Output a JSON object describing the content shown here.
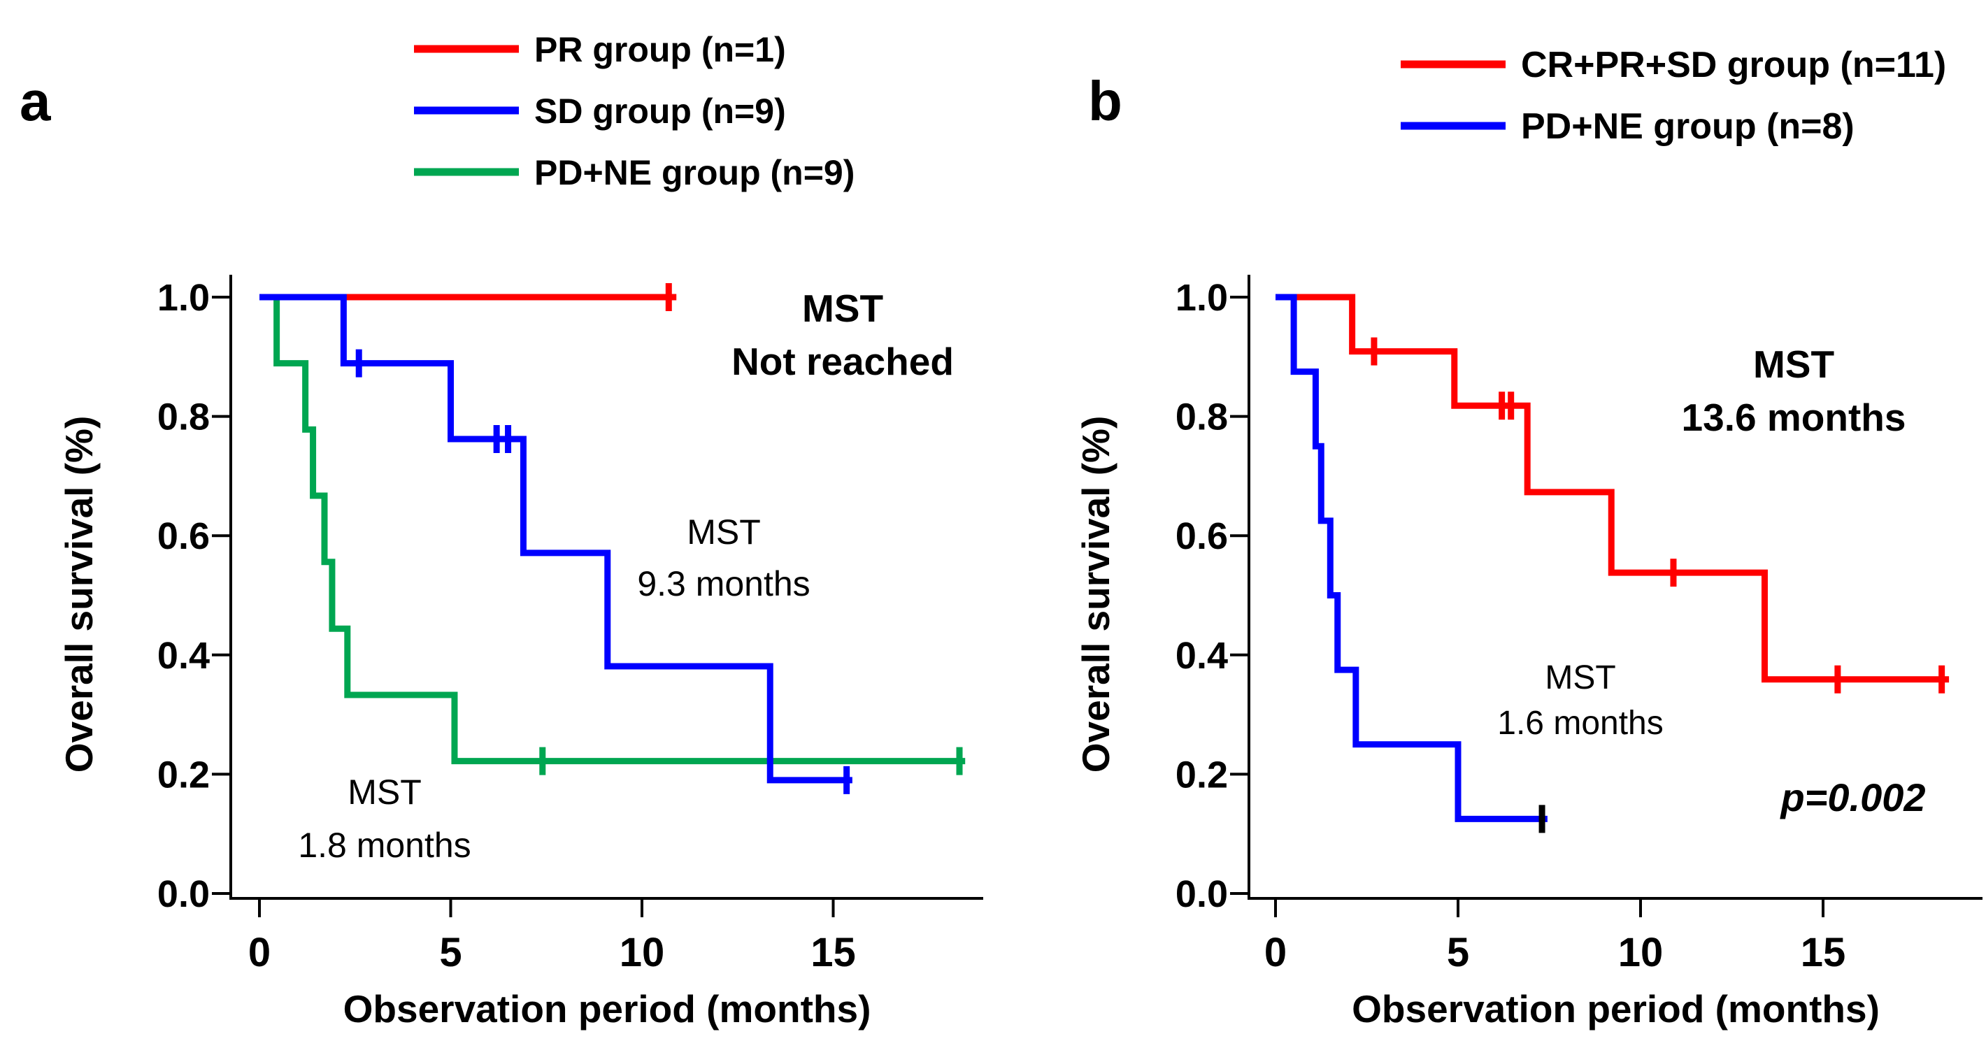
{
  "figure": {
    "background": "#FFFFFF",
    "description": "Two-panel Kaplan-Meier overall survival figure"
  },
  "chart_data": [
    {
      "type": "line",
      "subtype": "kaplan-meier-step",
      "panel_letter": "a",
      "xlabel": "Observation period (months)",
      "ylabel": "Overall survival (%)",
      "xlim": [
        0,
        18.9
      ],
      "ylim": [
        0.0,
        1.0
      ],
      "grid": false,
      "legend_position": "top-center",
      "x_ticks": [
        {
          "label": "0",
          "value": 0
        },
        {
          "label": "5",
          "value": 5
        },
        {
          "label": "10",
          "value": 10
        },
        {
          "label": "15",
          "value": 15
        }
      ],
      "y_ticks": [
        {
          "label": "1.0",
          "value": 1.0
        },
        {
          "label": "0.8",
          "value": 0.8
        },
        {
          "label": "0.6",
          "value": 0.6
        },
        {
          "label": "0.4",
          "value": 0.4
        },
        {
          "label": "0.2",
          "value": 0.2
        },
        {
          "label": "0.0",
          "value": 0.0
        }
      ],
      "legend": [
        {
          "label": "PR group (n=1)",
          "color": "#FF0000"
        },
        {
          "label": "SD group (n=9)",
          "color": "#0000FF"
        },
        {
          "label": "PD+NE group (n=9)",
          "color": "#00A651"
        }
      ],
      "series": [
        {
          "name": "PR group (n=1)",
          "color": "#FF0000",
          "steps": [
            [
              0,
              1.0
            ]
          ],
          "end": 10.9,
          "censors": [
            [
              10.7,
              1.0
            ]
          ]
        },
        {
          "name": "PD+NE group (n=9)",
          "color": "#00A651",
          "steps": [
            [
              0,
              1.0
            ],
            [
              0.45,
              0.889
            ],
            [
              1.2,
              0.778
            ],
            [
              1.4,
              0.667
            ],
            [
              1.7,
              0.556
            ],
            [
              1.9,
              0.444
            ],
            [
              2.3,
              0.333
            ],
            [
              5.1,
              0.222
            ]
          ],
          "end": 18.45,
          "censors": [
            [
              7.4,
              0.222
            ],
            [
              18.3,
              0.222
            ]
          ]
        },
        {
          "name": "SD group (n=9)",
          "color": "#0000FF",
          "steps": [
            [
              0,
              1.0
            ],
            [
              2.2,
              0.889
            ],
            [
              5.0,
              0.762
            ],
            [
              6.9,
              0.571
            ],
            [
              9.1,
              0.381
            ],
            [
              13.35,
              0.19
            ]
          ],
          "end": 15.5,
          "censors": [
            [
              2.6,
              0.889
            ],
            [
              6.2,
              0.762
            ],
            [
              6.5,
              0.762
            ],
            [
              15.35,
              0.19
            ]
          ]
        }
      ],
      "annotations": [
        {
          "lines": [
            "MST",
            "Not reached"
          ],
          "x": 1205,
          "y": 460,
          "line_height": 76,
          "bold": true,
          "italic": false,
          "size": 55
        },
        {
          "lines": [
            "MST",
            "9.3 months"
          ],
          "x": 1035,
          "y": 778,
          "line_height": 74,
          "bold": false,
          "italic": false,
          "size": 50
        },
        {
          "lines": [
            "MST",
            "1.8 months"
          ],
          "x": 550,
          "y": 1150,
          "line_height": 76,
          "bold": false,
          "italic": false,
          "size": 50
        }
      ]
    },
    {
      "type": "line",
      "subtype": "kaplan-meier-step",
      "panel_letter": "b",
      "xlabel": "Observation period (months)",
      "ylabel": "Overall survival (%)",
      "xlim": [
        0,
        18.9
      ],
      "ylim": [
        0.0,
        1.0
      ],
      "grid": false,
      "legend_position": "top-center",
      "x_ticks": [
        {
          "label": "0",
          "value": 0
        },
        {
          "label": "5",
          "value": 5
        },
        {
          "label": "10",
          "value": 10
        },
        {
          "label": "15",
          "value": 15
        }
      ],
      "y_ticks": [
        {
          "label": "1.0",
          "value": 1.0
        },
        {
          "label": "0.8",
          "value": 0.8
        },
        {
          "label": "0.6",
          "value": 0.6
        },
        {
          "label": "0.4",
          "value": 0.4
        },
        {
          "label": "0.2",
          "value": 0.2
        },
        {
          "label": "0.0",
          "value": 0.0
        }
      ],
      "legend": [
        {
          "label": "CR+PR+SD group (n=11)",
          "color": "#FF0000"
        },
        {
          "label": "PD+NE group (n=8)",
          "color": "#0000FF"
        }
      ],
      "series": [
        {
          "name": "CR+PR+SD group (n=11)",
          "color": "#FF0000",
          "steps": [
            [
              0,
              1.0
            ],
            [
              2.1,
              0.909
            ],
            [
              4.9,
              0.818
            ],
            [
              6.9,
              0.673
            ],
            [
              9.2,
              0.538
            ],
            [
              13.4,
              0.359
            ]
          ],
          "end": 18.45,
          "censors": [
            [
              2.7,
              0.909
            ],
            [
              6.2,
              0.818
            ],
            [
              6.45,
              0.818
            ],
            [
              10.9,
              0.538
            ],
            [
              15.4,
              0.359
            ],
            [
              18.25,
              0.359
            ]
          ]
        },
        {
          "name": "PD+NE group (n=8)",
          "color": "#0000FF",
          "steps": [
            [
              0,
              1.0
            ],
            [
              0.5,
              0.875
            ],
            [
              1.1,
              0.75
            ],
            [
              1.25,
              0.625
            ],
            [
              1.5,
              0.5
            ],
            [
              1.7,
              0.375
            ],
            [
              2.2,
              0.25
            ],
            [
              5.0,
              0.125
            ]
          ],
          "end": 7.45,
          "censors": [
            [
              7.3,
              0.125
            ]
          ],
          "censor_color": "#000000"
        }
      ],
      "annotations": [
        {
          "lines": [
            "MST",
            "13.6 months"
          ],
          "x": 2565,
          "y": 540,
          "line_height": 76,
          "bold": true,
          "italic": false,
          "size": 55
        },
        {
          "lines": [
            "MST",
            "1.6 months"
          ],
          "x": 2260,
          "y": 985,
          "line_height": 65,
          "bold": false,
          "italic": false,
          "size": 48
        },
        {
          "lines": [
            "p=0.002"
          ],
          "x": 2650,
          "y": 1160,
          "line_height": 60,
          "bold": true,
          "italic": true,
          "size": 56
        }
      ],
      "p_value": "p=0.002"
    }
  ]
}
